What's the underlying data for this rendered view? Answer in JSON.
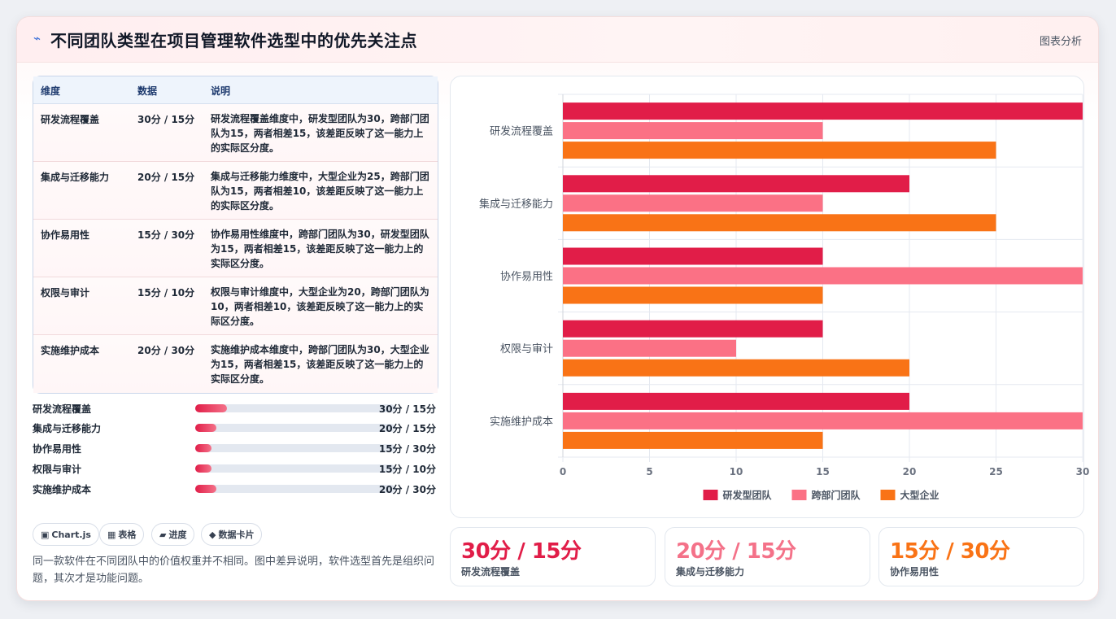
{
  "header": {
    "icon": "bolt-icon",
    "title": "不同团队类型在项目管理软件选型中的优先关注点",
    "link": "图表分析"
  },
  "table": {
    "headers": [
      "维度",
      "数据",
      "说明"
    ],
    "rows": [
      {
        "dim": "研发流程覆盖",
        "val": "30分 / 15分",
        "desc": "研发流程覆盖维度中，研发型团队为30，跨部门团队为15，两者相差15，该差距反映了这一能力上的实际区分度。"
      },
      {
        "dim": "集成与迁移能力",
        "val": "20分 / 15分",
        "desc": "集成与迁移能力维度中，大型企业为25，跨部门团队为15，两者相差10，该差距反映了这一能力上的实际区分度。"
      },
      {
        "dim": "协作易用性",
        "val": "15分 / 30分",
        "desc": "协作易用性维度中，跨部门团队为30，研发型团队为15，两者相差15，该差距反映了这一能力上的实际区分度。"
      },
      {
        "dim": "权限与审计",
        "val": "15分 / 10分",
        "desc": "权限与审计维度中，大型企业为20，跨部门团队为10，两者相差10，该差距反映了这一能力上的实际区分度。"
      },
      {
        "dim": "实施维护成本",
        "val": "20分 / 30分",
        "desc": "实施维护成本维度中，跨部门团队为30，大型企业为15，两者相差15，该差距反映了这一能力上的实际区分度。"
      }
    ]
  },
  "progress": [
    {
      "label": "研发流程覆盖",
      "value": "30分 / 15分",
      "fraction": 0.16
    },
    {
      "label": "集成与迁移能力",
      "value": "20分 / 15分",
      "fraction": 0.105
    },
    {
      "label": "协作易用性",
      "value": "15分 / 30分",
      "fraction": 0.08
    },
    {
      "label": "权限与审计",
      "value": "15分 / 10分",
      "fraction": 0.08
    },
    {
      "label": "实施维护成本",
      "value": "20分 / 30分",
      "fraction": 0.105
    }
  ],
  "chips": [
    {
      "icon": "chart-icon",
      "glyph": "▣",
      "label": "Chart.js"
    },
    {
      "icon": "table-icon",
      "glyph": "▦",
      "label": "表格"
    },
    {
      "icon": "progress-icon",
      "glyph": "▰",
      "label": "进度"
    },
    {
      "icon": "card-icon",
      "glyph": "◆",
      "label": "数据卡片"
    }
  ],
  "note": "同一款软件在不同团队中的价值权重并不相同。图中差异说明，软件选型首先是组织问题，其次才是功能问题。",
  "stats": [
    {
      "value": "30分 / 15分",
      "label": "研发流程覆盖",
      "color": "#e11d48"
    },
    {
      "value": "20分 / 15分",
      "label": "集成与迁移能力",
      "color": "#f47289"
    },
    {
      "value": "15分 / 30分",
      "label": "协作易用性",
      "color": "#f97316"
    }
  ],
  "chart_data": {
    "type": "bar",
    "orientation": "horizontal",
    "categories": [
      "研发流程覆盖",
      "集成与迁移能力",
      "协作易用性",
      "权限与审计",
      "实施维护成本"
    ],
    "series": [
      {
        "name": "研发型团队",
        "color": "#e11d48",
        "values": [
          30,
          20,
          15,
          15,
          20
        ]
      },
      {
        "name": "跨部门团队",
        "color": "#fb7185",
        "values": [
          15,
          15,
          30,
          10,
          30
        ]
      },
      {
        "name": "大型企业",
        "color": "#f97316",
        "values": [
          25,
          25,
          15,
          20,
          15
        ]
      }
    ],
    "xlim": [
      0,
      30
    ],
    "xticks": [
      0,
      5,
      10,
      15,
      20,
      25,
      30
    ],
    "grid": true,
    "legend": "bottom"
  }
}
